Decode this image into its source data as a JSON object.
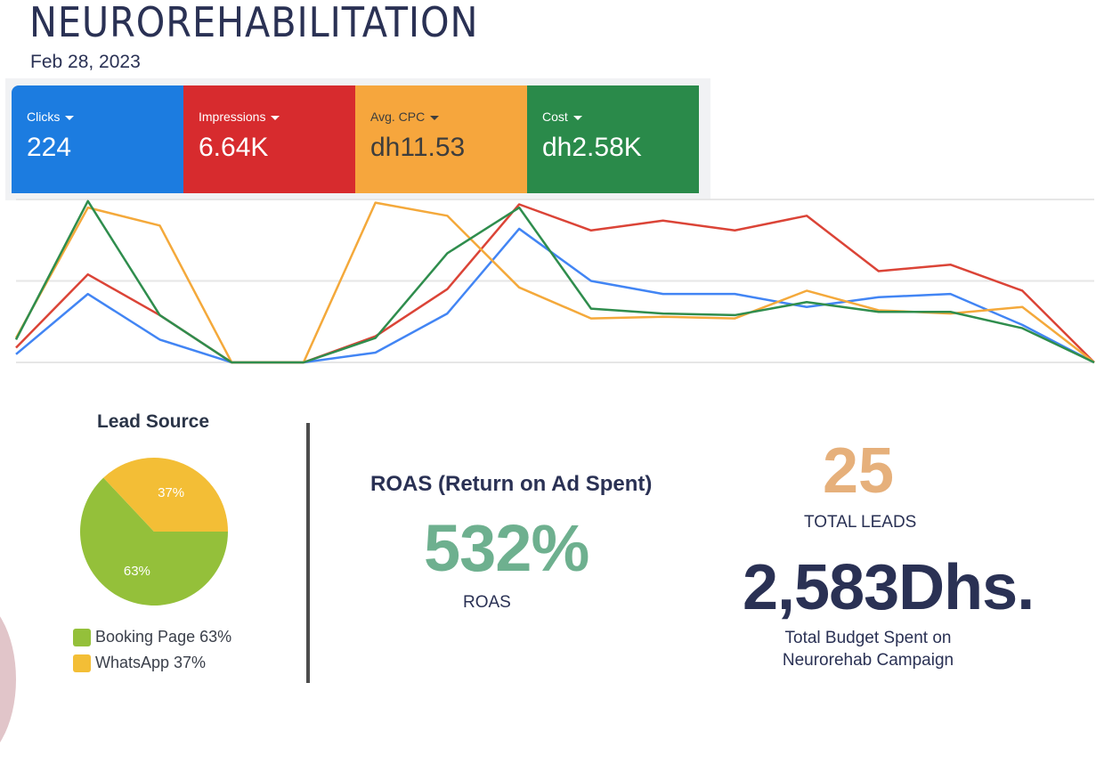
{
  "header": {
    "title": "NEUROREHABILITATION",
    "date": "Feb 28, 2023"
  },
  "scorecards": [
    {
      "label": "Clicks",
      "value": "224",
      "bg": "#1c7ce0",
      "fg": "#ffffff"
    },
    {
      "label": "Impressions",
      "value": "6.64K",
      "bg": "#d72b2e",
      "fg": "#ffffff"
    },
    {
      "label": "Avg. CPC",
      "value": "dh11.53",
      "bg": "#f6a63d",
      "fg": "#3d3d3d"
    },
    {
      "label": "Cost",
      "value": "dh2.58K",
      "bg": "#2a8a4a",
      "fg": "#ffffff"
    }
  ],
  "chart_data": [
    {
      "type": "line",
      "title": "",
      "xlabel": "",
      "ylabel": "",
      "ylim": [
        0,
        100
      ],
      "normalized": true,
      "grid": true,
      "legend": "none",
      "x": [
        1,
        2,
        3,
        4,
        5,
        6,
        7,
        8,
        9,
        10,
        11,
        12,
        13,
        14,
        15,
        16
      ],
      "series": [
        {
          "name": "Clicks",
          "color": "#4285f4",
          "values": [
            5,
            42,
            14,
            0,
            0,
            6,
            30,
            82,
            50,
            42,
            42,
            34,
            40,
            42,
            23,
            0
          ]
        },
        {
          "name": "Impressions",
          "color": "#db4437",
          "values": [
            9,
            54,
            29,
            0,
            0,
            16,
            45,
            97,
            81,
            87,
            81,
            90,
            56,
            60,
            44,
            0
          ]
        },
        {
          "name": "Avg. CPC",
          "color": "#f4a93b",
          "values": [
            15,
            95,
            84,
            0,
            0,
            98,
            90,
            46,
            27,
            28,
            27,
            44,
            32,
            30,
            34,
            0
          ]
        },
        {
          "name": "Cost",
          "color": "#2f8d4d",
          "values": [
            14,
            99,
            29,
            0,
            0,
            15,
            67,
            95,
            33,
            30,
            29,
            37,
            31,
            31,
            21,
            0
          ]
        }
      ]
    },
    {
      "type": "pie",
      "title": "Lead Source",
      "slices": [
        {
          "label": "Booking Page",
          "value": 63,
          "display": "63%",
          "color": "#94c03a"
        },
        {
          "label": "WhatsApp",
          "value": 37,
          "display": "37%",
          "color": "#f3be36"
        }
      ],
      "legend": "bottom"
    }
  ],
  "lead_source": {
    "title": "Lead Source",
    "legend": [
      {
        "label": "Booking Page 63%",
        "color": "#94c03a"
      },
      {
        "label": "WhatsApp 37%",
        "color": "#f3be36"
      }
    ]
  },
  "roas": {
    "title": "ROAS (Return on Ad Spent)",
    "value": "532%",
    "label": "ROAS"
  },
  "leads": {
    "value": "25",
    "label": "TOTAL LEADS"
  },
  "budget": {
    "value": "2,583Dhs.",
    "label_line1": "Total Budget Spent on",
    "label_line2": "Neurorehab Campaign"
  }
}
